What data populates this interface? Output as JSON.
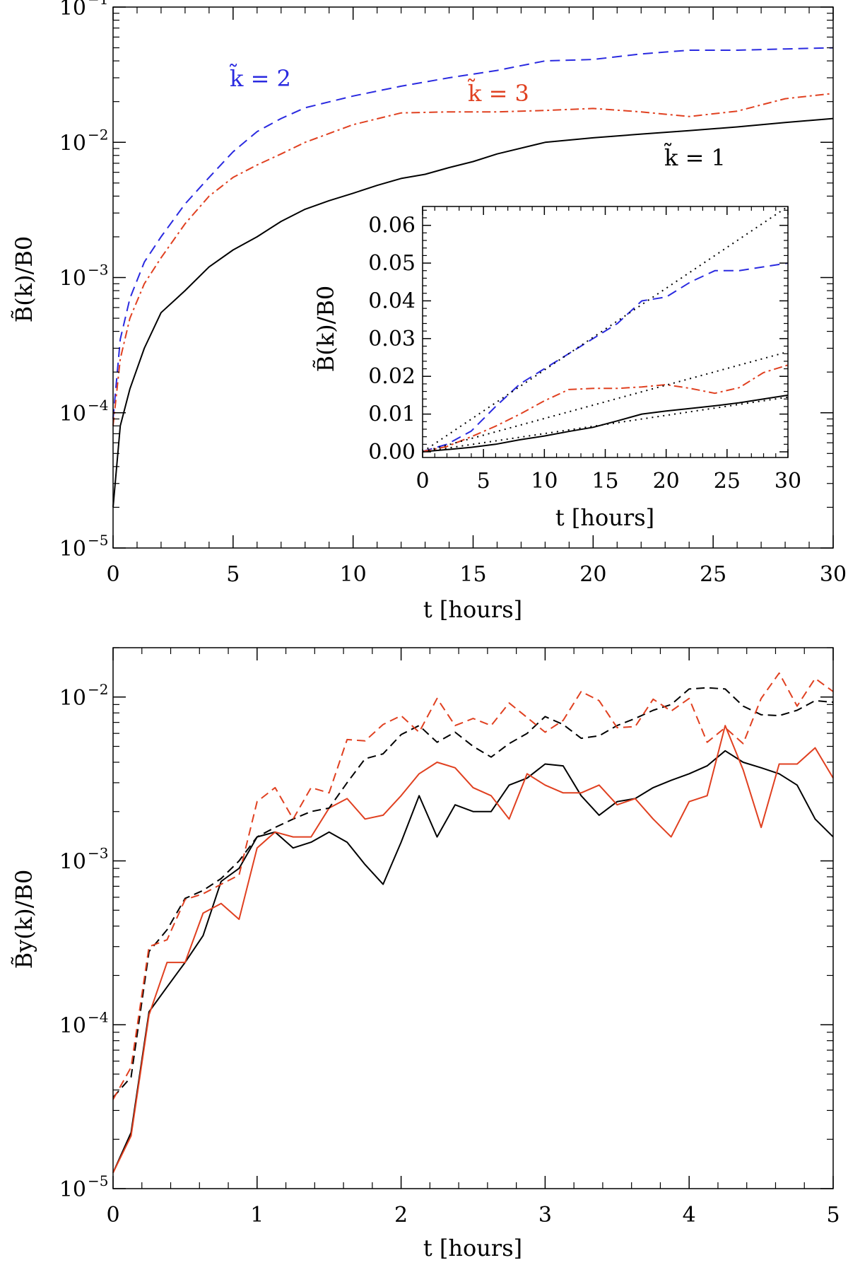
{
  "chart_data": [
    {
      "id": "top",
      "type": "line",
      "yscale": "log",
      "xlim": [
        0,
        30
      ],
      "ylim": [
        1e-05,
        0.1
      ],
      "xlabel": "t [hours]",
      "ylabel": "B̃(k)/B0",
      "xticks": [
        0,
        5,
        10,
        15,
        20,
        25,
        30
      ],
      "yticks": [
        {
          "value": 1e-05,
          "base": "10",
          "exp": "−5"
        },
        {
          "value": 0.0001,
          "base": "10",
          "exp": "−4"
        },
        {
          "value": 0.001,
          "base": "10",
          "exp": "−3"
        },
        {
          "value": 0.01,
          "base": "10",
          "exp": "−2"
        },
        {
          "value": 0.1,
          "base": "10",
          "exp": "−1"
        }
      ],
      "series": [
        {
          "name": "k̃ = 1",
          "color": "#000000",
          "dash": "",
          "x": [
            0,
            0.3,
            0.7,
            1.3,
            2,
            3,
            4,
            5,
            6,
            7,
            8,
            9,
            10,
            11,
            12,
            13,
            14,
            15,
            16,
            18,
            20,
            22,
            24,
            26,
            28,
            30
          ],
          "y": [
            2e-05,
            8e-05,
            0.00015,
            0.0003,
            0.00055,
            0.0008,
            0.0012,
            0.0016,
            0.002,
            0.0026,
            0.0032,
            0.0037,
            0.0042,
            0.0048,
            0.0054,
            0.0058,
            0.0065,
            0.0072,
            0.0082,
            0.01,
            0.0108,
            0.0115,
            0.0122,
            0.013,
            0.014,
            0.015
          ]
        },
        {
          "name": "k̃ = 2",
          "color": "#2a2ae0",
          "dash": "14,8",
          "x": [
            0,
            0.3,
            0.7,
            1.3,
            2,
            3,
            4,
            5,
            6,
            7,
            8,
            10,
            12,
            14,
            16,
            18,
            20,
            22,
            24,
            26,
            28,
            30
          ],
          "y": [
            9e-05,
            0.00035,
            0.0007,
            0.0013,
            0.002,
            0.0035,
            0.0055,
            0.0085,
            0.012,
            0.015,
            0.018,
            0.022,
            0.026,
            0.03,
            0.034,
            0.04,
            0.041,
            0.045,
            0.048,
            0.048,
            0.049,
            0.05
          ]
        },
        {
          "name": "k̃ = 3",
          "color": "#e04020",
          "dash": "12,5,3,5",
          "x": [
            0,
            0.3,
            0.7,
            1.3,
            2,
            3,
            4,
            5,
            6,
            7,
            8,
            10,
            12,
            14,
            16,
            18,
            20,
            22,
            24,
            26,
            28,
            30
          ],
          "y": [
            8e-05,
            0.00025,
            0.0005,
            0.0009,
            0.0014,
            0.0025,
            0.004,
            0.0055,
            0.0068,
            0.0082,
            0.01,
            0.0135,
            0.0165,
            0.0168,
            0.0168,
            0.0172,
            0.0178,
            0.0168,
            0.0155,
            0.017,
            0.021,
            0.023
          ]
        }
      ],
      "annotations": [
        {
          "text": "k̃ = 2",
          "color": "#2a2ae0"
        },
        {
          "text": "k̃ = 3",
          "color": "#e04020"
        },
        {
          "text": "k̃ = 1",
          "color": "#000000"
        }
      ]
    },
    {
      "id": "inset",
      "type": "line",
      "yscale": "linear",
      "xlim": [
        0,
        30
      ],
      "ylim": [
        -0.0015,
        0.065
      ],
      "xlabel": "t [hours]",
      "ylabel": "B̃(k)/B0",
      "xticks": [
        0,
        5,
        10,
        15,
        20,
        25,
        30
      ],
      "yticks": [
        0.0,
        0.01,
        0.02,
        0.03,
        0.04,
        0.05,
        0.06
      ],
      "ytick_labels": [
        "0.00",
        "0.01",
        "0.02",
        "0.03",
        "0.04",
        "0.05",
        "0.06"
      ],
      "series": [
        {
          "name": "k̃ = 1",
          "color": "#000000",
          "dash": "",
          "x": [
            0,
            2,
            4,
            6,
            8,
            10,
            12,
            14,
            16,
            18,
            20,
            22,
            24,
            26,
            28,
            30
          ],
          "y": [
            2e-05,
            0.0006,
            0.0012,
            0.002,
            0.0032,
            0.0042,
            0.0054,
            0.0065,
            0.0082,
            0.01,
            0.0108,
            0.0115,
            0.0122,
            0.013,
            0.014,
            0.015
          ]
        },
        {
          "name": "k̃ = 2",
          "color": "#2a2ae0",
          "dash": "14,8",
          "x": [
            0,
            2,
            4,
            6,
            8,
            10,
            12,
            14,
            16,
            18,
            20,
            22,
            24,
            26,
            28,
            30
          ],
          "y": [
            0.0001,
            0.002,
            0.0055,
            0.012,
            0.018,
            0.022,
            0.026,
            0.03,
            0.034,
            0.04,
            0.041,
            0.045,
            0.048,
            0.048,
            0.049,
            0.05
          ]
        },
        {
          "name": "k̃ = 3",
          "color": "#e04020",
          "dash": "12,5,3,5",
          "x": [
            0,
            2,
            4,
            6,
            8,
            10,
            12,
            14,
            16,
            18,
            20,
            22,
            24,
            26,
            28,
            30
          ],
          "y": [
            0.0001,
            0.0014,
            0.004,
            0.0068,
            0.01,
            0.0135,
            0.0165,
            0.0168,
            0.0168,
            0.0172,
            0.0178,
            0.0168,
            0.0155,
            0.017,
            0.021,
            0.023
          ]
        },
        {
          "name": "fit k̃ = 2",
          "color": "#000000",
          "dash": "2,6",
          "x": [
            0,
            30
          ],
          "y": [
            0,
            0.065
          ]
        },
        {
          "name": "fit k̃ = 3",
          "color": "#000000",
          "dash": "2,6",
          "x": [
            0,
            30
          ],
          "y": [
            0,
            0.0265
          ]
        },
        {
          "name": "fit k̃ = 1",
          "color": "#000000",
          "dash": "2,6",
          "x": [
            0,
            30
          ],
          "y": [
            0,
            0.0145
          ]
        }
      ]
    },
    {
      "id": "bottom",
      "type": "line",
      "yscale": "log",
      "xlim": [
        0,
        5
      ],
      "ylim": [
        1e-05,
        0.02
      ],
      "xlabel": "t [hours]",
      "ylabel": "B̃y(k)/B0",
      "xticks": [
        0,
        1,
        2,
        3,
        4,
        5
      ],
      "yticks": [
        {
          "value": 1e-05,
          "base": "10",
          "exp": "−5"
        },
        {
          "value": 0.0001,
          "base": "10",
          "exp": "−4"
        },
        {
          "value": 0.001,
          "base": "10",
          "exp": "−3"
        },
        {
          "value": 0.01,
          "base": "10",
          "exp": "−2"
        }
      ],
      "series": [
        {
          "name": "black solid",
          "color": "#000000",
          "dash": "",
          "x": [
            0,
            0.125,
            0.25,
            0.375,
            0.5,
            0.625,
            0.75,
            0.875,
            1,
            1.125,
            1.25,
            1.375,
            1.5,
            1.625,
            1.75,
            1.875,
            2,
            2.125,
            2.25,
            2.375,
            2.5,
            2.625,
            2.75,
            2.875,
            3,
            3.125,
            3.25,
            3.375,
            3.5,
            3.625,
            3.75,
            3.875,
            4,
            4.125,
            4.25,
            4.375,
            4.5,
            4.625,
            4.75,
            4.875,
            5
          ],
          "y": [
            1.25e-05,
            2.2e-05,
            0.00012,
            0.00017,
            0.00024,
            0.00035,
            0.00075,
            0.0009,
            0.0014,
            0.0015,
            0.0012,
            0.0013,
            0.0015,
            0.0013,
            0.00095,
            0.00072,
            0.0013,
            0.0025,
            0.0014,
            0.0022,
            0.002,
            0.002,
            0.0029,
            0.0032,
            0.0039,
            0.0038,
            0.0025,
            0.0019,
            0.0023,
            0.0024,
            0.0028,
            0.0031,
            0.0034,
            0.0038,
            0.0047,
            0.004,
            0.0037,
            0.0034,
            0.0029,
            0.0018,
            0.0014
          ]
        },
        {
          "name": "red solid",
          "color": "#e04020",
          "dash": "",
          "x": [
            0,
            0.125,
            0.25,
            0.375,
            0.5,
            0.625,
            0.75,
            0.875,
            1,
            1.125,
            1.25,
            1.375,
            1.5,
            1.625,
            1.75,
            1.875,
            2,
            2.125,
            2.25,
            2.375,
            2.5,
            2.625,
            2.75,
            2.875,
            3,
            3.125,
            3.25,
            3.375,
            3.5,
            3.625,
            3.75,
            3.875,
            4,
            4.125,
            4.25,
            4.375,
            4.5,
            4.625,
            4.75,
            4.875,
            5
          ],
          "y": [
            1.25e-05,
            2.1e-05,
            0.000115,
            0.00024,
            0.00024,
            0.00048,
            0.00055,
            0.00044,
            0.0012,
            0.0015,
            0.0014,
            0.0014,
            0.0021,
            0.0024,
            0.0018,
            0.0019,
            0.0025,
            0.0034,
            0.004,
            0.0037,
            0.0028,
            0.0025,
            0.0018,
            0.0034,
            0.0029,
            0.0026,
            0.0026,
            0.0029,
            0.0022,
            0.0024,
            0.0018,
            0.0014,
            0.0023,
            0.0025,
            0.0067,
            0.0036,
            0.0016,
            0.0039,
            0.0039,
            0.0049,
            0.0032
          ]
        },
        {
          "name": "black dashed",
          "color": "#000000",
          "dash": "12,7",
          "x": [
            0,
            0.125,
            0.25,
            0.375,
            0.5,
            0.625,
            0.75,
            0.875,
            1,
            1.125,
            1.25,
            1.375,
            1.5,
            1.625,
            1.75,
            1.875,
            2,
            2.125,
            2.25,
            2.375,
            2.5,
            2.625,
            2.75,
            2.875,
            3,
            3.125,
            3.25,
            3.375,
            3.5,
            3.625,
            3.75,
            3.875,
            4,
            4.125,
            4.25,
            4.375,
            4.5,
            4.625,
            4.75,
            4.875,
            5
          ],
          "y": [
            3.6e-05,
            4.8e-05,
            0.00028,
            0.00038,
            0.00059,
            0.00066,
            0.00078,
            0.001,
            0.0014,
            0.0016,
            0.0018,
            0.002,
            0.0021,
            0.003,
            0.0042,
            0.0045,
            0.0059,
            0.0067,
            0.0053,
            0.0061,
            0.005,
            0.0043,
            0.0052,
            0.006,
            0.0076,
            0.0068,
            0.0056,
            0.0058,
            0.0067,
            0.0074,
            0.0083,
            0.009,
            0.0112,
            0.0114,
            0.0112,
            0.0088,
            0.0078,
            0.0077,
            0.0083,
            0.0095,
            0.0093
          ]
        },
        {
          "name": "red dashed",
          "color": "#e04020",
          "dash": "12,7",
          "x": [
            0,
            0.125,
            0.25,
            0.375,
            0.5,
            0.625,
            0.75,
            0.875,
            1,
            1.125,
            1.25,
            1.375,
            1.5,
            1.625,
            1.75,
            1.875,
            2,
            2.125,
            2.25,
            2.375,
            2.5,
            2.625,
            2.75,
            2.875,
            3,
            3.125,
            3.25,
            3.375,
            3.5,
            3.625,
            3.75,
            3.875,
            4,
            4.125,
            4.25,
            4.375,
            4.5,
            4.625,
            4.75,
            4.875,
            5
          ],
          "y": [
            3.5e-05,
            5.5e-05,
            0.0003,
            0.00033,
            0.00058,
            0.00063,
            0.00072,
            0.00082,
            0.0023,
            0.0028,
            0.0018,
            0.0028,
            0.0026,
            0.0055,
            0.0054,
            0.0068,
            0.0077,
            0.0061,
            0.0098,
            0.0067,
            0.0074,
            0.0067,
            0.0092,
            0.0075,
            0.0061,
            0.0072,
            0.0108,
            0.0095,
            0.0065,
            0.0066,
            0.0097,
            0.0082,
            0.0098,
            0.0053,
            0.0065,
            0.0052,
            0.0098,
            0.014,
            0.0088,
            0.013,
            0.0108
          ]
        }
      ]
    }
  ]
}
